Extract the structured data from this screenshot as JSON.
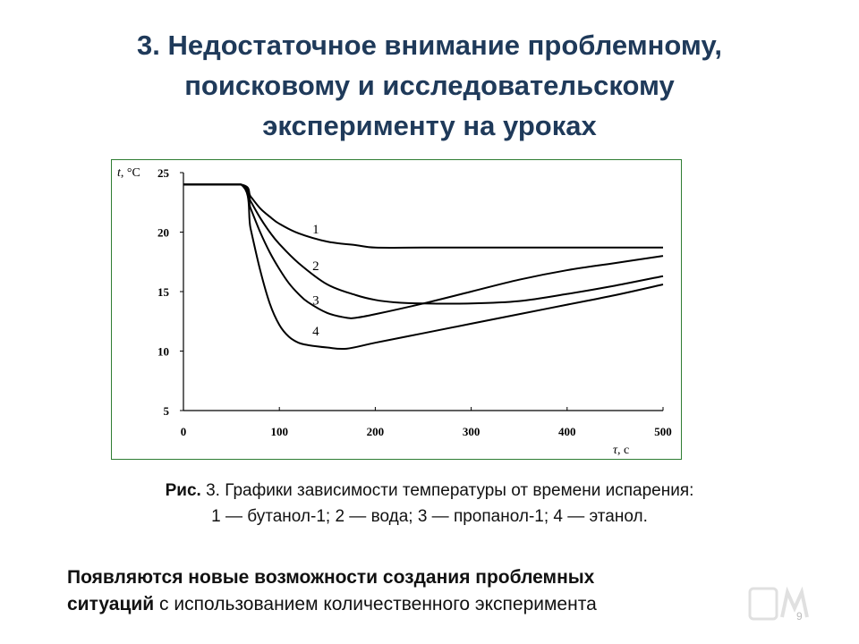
{
  "slide": {
    "title_lines": [
      "3. Недостаточное внимание проблемному,",
      "поисковому и исследовательскому",
      "эксперименту на уроках"
    ],
    "caption": {
      "label": "Рис.",
      "line1": " 3. Графики зависимости температуры от времени испарения:",
      "line2": "1 — бутанол-1; 2 — вода; 3 — пропанол-1; 4 — этанол."
    },
    "bottom": {
      "bold1": "Появляются новые возможности создания проблемных",
      "bold2": "ситуаций",
      "rest": " с использованием количественного эксперимента"
    },
    "page_number": "9",
    "logo_icon": "watermark-logo-icon"
  },
  "chart_data": {
    "type": "line",
    "title": "",
    "ylabel_var": "t",
    "ylabel_unit": ", °C",
    "xlabel_var": "τ",
    "xlabel_unit": ", с",
    "xlim": [
      0,
      500
    ],
    "ylim": [
      5,
      25
    ],
    "x_ticks": [
      0,
      100,
      200,
      300,
      400,
      500
    ],
    "y_ticks": [
      5,
      10,
      15,
      20,
      25
    ],
    "grid": false,
    "legend": "none",
    "line_color": "#000000",
    "series": [
      {
        "name": "1",
        "x": [
          0,
          60,
          70,
          80,
          90,
          100,
          120,
          150,
          180,
          200,
          250,
          300,
          400,
          500
        ],
        "y": [
          24.0,
          24.0,
          23.0,
          22.0,
          21.3,
          20.7,
          19.9,
          19.2,
          18.9,
          18.7,
          18.7,
          18.7,
          18.7,
          18.7
        ]
      },
      {
        "name": "2",
        "x": [
          0,
          60,
          70,
          80,
          90,
          100,
          120,
          150,
          180,
          200,
          220,
          250,
          300,
          350,
          400,
          450,
          500
        ],
        "y": [
          24.0,
          24.0,
          22.6,
          21.2,
          20.0,
          19.0,
          17.4,
          15.6,
          14.7,
          14.3,
          14.1,
          14.0,
          14.0,
          14.2,
          14.8,
          15.5,
          16.3
        ]
      },
      {
        "name": "3",
        "x": [
          0,
          60,
          70,
          80,
          90,
          100,
          110,
          120,
          130,
          150,
          170,
          180,
          200,
          250,
          300,
          350,
          400,
          450,
          500
        ],
        "y": [
          24.0,
          24.0,
          22.0,
          20.0,
          18.3,
          16.9,
          15.7,
          14.8,
          14.1,
          13.2,
          12.8,
          12.8,
          13.1,
          14.0,
          15.0,
          16.0,
          16.8,
          17.4,
          18.0
        ]
      },
      {
        "name": "4",
        "x": [
          0,
          60,
          70,
          80,
          90,
          100,
          110,
          120,
          130,
          150,
          170,
          200,
          250,
          300,
          350,
          400,
          450,
          500
        ],
        "y": [
          24.0,
          24.0,
          20.3,
          16.8,
          14.0,
          12.2,
          11.2,
          10.7,
          10.5,
          10.3,
          10.2,
          10.7,
          11.5,
          12.3,
          13.1,
          13.9,
          14.7,
          15.6
        ]
      }
    ]
  }
}
